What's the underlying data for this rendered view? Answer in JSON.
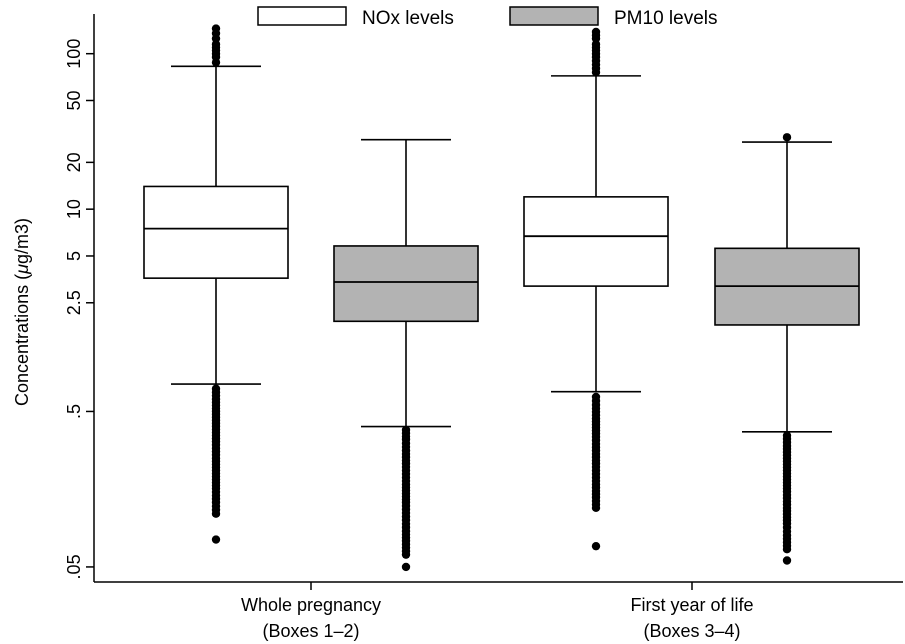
{
  "chart_data": {
    "type": "boxplot",
    "ylabel_prefix": "Concentrations (",
    "ylabel_mu": "μ",
    "ylabel_suffix": "g/m3)",
    "y_scale": "log",
    "ylim": [
      0.04,
      180
    ],
    "y_ticks": [
      {
        "value": 0.05,
        "label": ".05"
      },
      {
        "value": 0.5,
        "label": ".5"
      },
      {
        "value": 2.5,
        "label": "2.5"
      },
      {
        "value": 5,
        "label": "5"
      },
      {
        "value": 10,
        "label": "10"
      },
      {
        "value": 20,
        "label": "20"
      },
      {
        "value": 50,
        "label": "50"
      },
      {
        "value": 100,
        "label": "100"
      }
    ],
    "grid": false,
    "legend_position": "top",
    "legend": [
      {
        "name": "NOx levels",
        "color": "#ffffff"
      },
      {
        "name": "PM10 levels",
        "color": "#b3b3b3"
      }
    ],
    "categories": [
      {
        "line1": "Whole pregnancy",
        "line2": "(Boxes 1–2)"
      },
      {
        "line1": "First year of life",
        "line2": "(Boxes 3–4)"
      }
    ],
    "boxes": [
      {
        "series": "NOx levels",
        "category": 0,
        "whisker_low": 0.75,
        "q1": 3.6,
        "median": 7.5,
        "q3": 14.0,
        "whisker_high": 83,
        "outliers_high": [
          88,
          95,
          105,
          115,
          125,
          135,
          145
        ],
        "outliers_low": [
          0.7,
          0.6,
          0.5,
          0.4,
          0.32,
          0.25,
          0.2,
          0.16,
          0.13,
          0.11,
          0.075
        ]
      },
      {
        "series": "PM10 levels",
        "category": 0,
        "whisker_low": 0.4,
        "q1": 1.9,
        "median": 3.4,
        "q3": 5.8,
        "whisker_high": 28,
        "outliers_high": [],
        "outliers_low": [
          0.38,
          0.33,
          0.28,
          0.22,
          0.17,
          0.13,
          0.1,
          0.085,
          0.07,
          0.06,
          0.05
        ]
      },
      {
        "series": "NOx levels",
        "category": 1,
        "whisker_low": 0.67,
        "q1": 3.2,
        "median": 6.7,
        "q3": 12.0,
        "whisker_high": 72,
        "outliers_high": [
          76,
          85,
          95,
          105,
          115,
          125,
          138
        ],
        "outliers_low": [
          0.62,
          0.55,
          0.45,
          0.36,
          0.28,
          0.22,
          0.17,
          0.14,
          0.12,
          0.068
        ]
      },
      {
        "series": "PM10 levels",
        "category": 1,
        "whisker_low": 0.37,
        "q1": 1.8,
        "median": 3.2,
        "q3": 5.6,
        "whisker_high": 27,
        "outliers_high": [
          29
        ],
        "outliers_low": [
          0.35,
          0.3,
          0.25,
          0.2,
          0.16,
          0.12,
          0.095,
          0.08,
          0.065,
          0.055
        ]
      }
    ]
  }
}
